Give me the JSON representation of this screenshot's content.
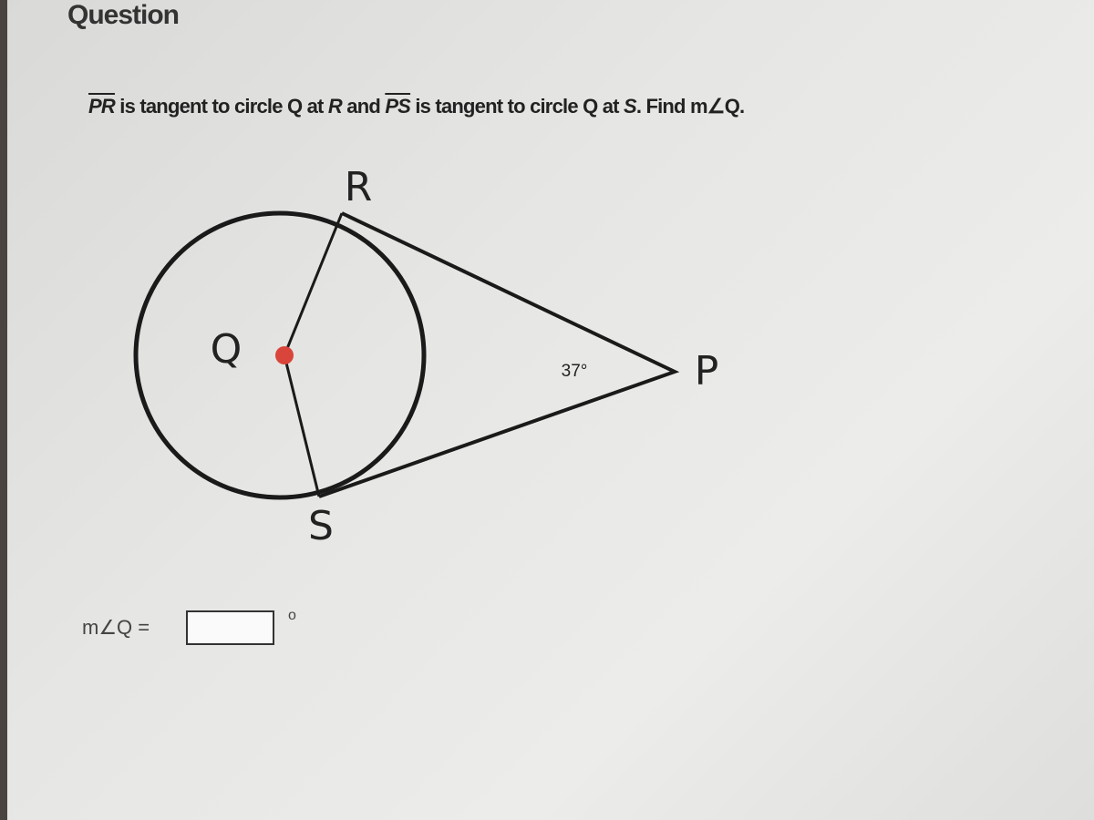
{
  "header": {
    "title": "Question"
  },
  "prompt": [
    "PR",
    " is tangent to circle Q at ",
    "R",
    " and ",
    "PS",
    " is tangent to circle Q at ",
    "S",
    ". Find m∠Q."
  ],
  "diagram": {
    "labels": {
      "R": "R",
      "Q": "Q",
      "P": "P",
      "S": "S"
    },
    "angle_label": "37°"
  },
  "answer": {
    "label": "m∠Q =",
    "unit": "o"
  }
}
